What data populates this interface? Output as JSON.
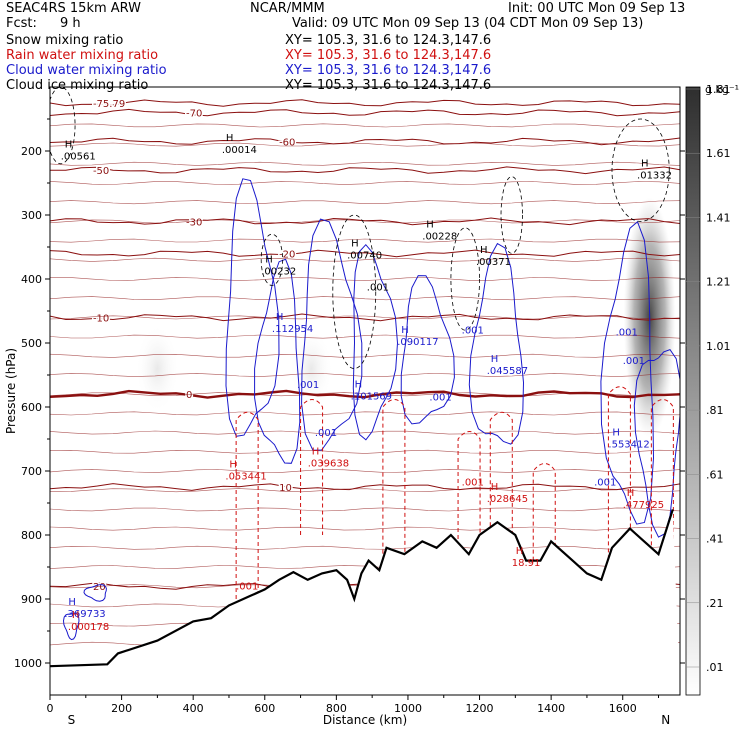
{
  "header": {
    "model": "SEAC4RS 15km ARW",
    "center": "NCAR/MMM",
    "init": "Init: 00 UTC Mon 09 Sep 13",
    "fcst_label": "Fcst:",
    "fcst_value": "9 h",
    "valid": "Valid: 09 UTC Mon 09 Sep 13 (04 CDT Mon 09 Sep 13)",
    "fields": [
      {
        "name": "Snow mixing ratio",
        "xy": "XY= 105.3, 31.6 to 124.3,147.6",
        "color": "#000000"
      },
      {
        "name": "Rain water mixing ratio",
        "xy": "XY= 105.3, 31.6 to 124.3,147.6",
        "color": "#d01010"
      },
      {
        "name": "Cloud water mixing ratio",
        "xy": "XY= 105.3, 31.6 to 124.3,147.6",
        "color": "#1a1acc"
      },
      {
        "name": "Cloud ice mixing ratio",
        "xy": "XY= 105.3, 31.6 to 124.3,147.6",
        "color": "#000000"
      }
    ]
  },
  "chart_data": {
    "type": "cross-section contour",
    "xlabel": "Distance (km)",
    "ylabel": "Pressure (hPa)",
    "xlim": [
      0,
      1760
    ],
    "ylim": [
      1050,
      100
    ],
    "x_ticks": [
      0,
      200,
      400,
      600,
      800,
      1000,
      1200,
      1400,
      1600
    ],
    "y_ticks": [
      200,
      300,
      400,
      500,
      600,
      700,
      800,
      900,
      1000
    ],
    "endpoint_labels": {
      "left": "S",
      "right": "N"
    },
    "colorbar": {
      "unit": "g kg⁻¹",
      "labels": [
        ".01",
        ".21",
        ".41",
        ".61",
        ".81",
        "1.01",
        "1.21",
        "1.41",
        "1.61",
        "1.81"
      ],
      "min": 0.01,
      "max": 1.81
    },
    "terrain": [
      [
        0,
        1005
      ],
      [
        160,
        1002
      ],
      [
        190,
        985
      ],
      [
        300,
        965
      ],
      [
        400,
        935
      ],
      [
        450,
        930
      ],
      [
        500,
        910
      ],
      [
        540,
        900
      ],
      [
        560,
        895
      ],
      [
        600,
        885
      ],
      [
        640,
        870
      ],
      [
        680,
        858
      ],
      [
        720,
        870
      ],
      [
        760,
        860
      ],
      [
        800,
        855
      ],
      [
        830,
        870
      ],
      [
        850,
        900
      ],
      [
        870,
        860
      ],
      [
        890,
        840
      ],
      [
        920,
        855
      ],
      [
        940,
        820
      ],
      [
        990,
        830
      ],
      [
        1040,
        810
      ],
      [
        1080,
        820
      ],
      [
        1120,
        800
      ],
      [
        1170,
        830
      ],
      [
        1200,
        800
      ],
      [
        1250,
        780
      ],
      [
        1300,
        800
      ],
      [
        1330,
        840
      ],
      [
        1370,
        840
      ],
      [
        1400,
        810
      ],
      [
        1460,
        840
      ],
      [
        1500,
        860
      ],
      [
        1540,
        870
      ],
      [
        1570,
        820
      ],
      [
        1620,
        790
      ],
      [
        1660,
        810
      ],
      [
        1700,
        830
      ],
      [
        1740,
        760
      ]
    ],
    "temperature_contours": [
      {
        "label": "-75.79",
        "p": 125
      },
      {
        "label": "-70",
        "p": 140
      },
      {
        "label": "-60",
        "p": 185
      },
      {
        "label": "-50",
        "p": 230
      },
      {
        "label": "-30",
        "p": 310
      },
      {
        "label": "-20",
        "p": 360
      },
      {
        "label": "-10",
        "p": 460
      },
      {
        "label": "0",
        "p": 580
      },
      {
        "label": "10",
        "p": 725
      },
      {
        "label": "20",
        "p": 880
      }
    ],
    "max_labels": [
      {
        "text": ".00561",
        "x": 30,
        "p": 210,
        "color": "#000000"
      },
      {
        "text": ".00014",
        "x": 480,
        "p": 200,
        "color": "#000000"
      },
      {
        "text": ".01332",
        "x": 1640,
        "p": 240,
        "color": "#000000"
      },
      {
        "text": ".00228",
        "x": 1040,
        "p": 335,
        "color": "#000000"
      },
      {
        "text": ".00740",
        "x": 830,
        "p": 365,
        "color": "#000000"
      },
      {
        "text": ".00371",
        "x": 1190,
        "p": 375,
        "color": "#000000"
      },
      {
        "text": ".00232",
        "x": 590,
        "p": 390,
        "color": "#000000"
      },
      {
        "text": ".112954",
        "x": 620,
        "p": 480,
        "color": "#1a1acc"
      },
      {
        "text": ".090117",
        "x": 970,
        "p": 500,
        "color": "#1a1acc"
      },
      {
        "text": ".045587",
        "x": 1220,
        "p": 545,
        "color": "#1a1acc"
      },
      {
        "text": ".101569",
        "x": 840,
        "p": 585,
        "color": "#1a1acc"
      },
      {
        "text": ".553412",
        "x": 1560,
        "p": 660,
        "color": "#1a1acc"
      },
      {
        "text": ".053441",
        "x": 490,
        "p": 710,
        "color": "#d01010"
      },
      {
        "text": ".039638",
        "x": 720,
        "p": 690,
        "color": "#d01010"
      },
      {
        "text": ".028645",
        "x": 1220,
        "p": 745,
        "color": "#d01010"
      },
      {
        "text": ".477925",
        "x": 1600,
        "p": 755,
        "color": "#d01010"
      },
      {
        "text": "18.91",
        "x": 1290,
        "p": 845,
        "color": "#d01010"
      },
      {
        "text": ".369733",
        "x": 40,
        "p": 925,
        "color": "#1a1acc"
      },
      {
        "text": ".000178",
        "x": 50,
        "p": 945,
        "color": "#d01010"
      }
    ],
    "min_labels": [
      {
        "text": ".001",
        "x": 885,
        "p": 418,
        "color": "#000000"
      },
      {
        "text": ".001",
        "x": 1150,
        "p": 485,
        "color": "#1a1acc"
      },
      {
        "text": ".001",
        "x": 1580,
        "p": 488,
        "color": "#1a1acc"
      },
      {
        "text": ".001",
        "x": 1600,
        "p": 533,
        "color": "#1a1acc"
      },
      {
        "text": ".001",
        "x": 690,
        "p": 570,
        "color": "#1a1acc"
      },
      {
        "text": ".001",
        "x": 1060,
        "p": 590,
        "color": "#1a1acc"
      },
      {
        "text": ".001",
        "x": 740,
        "p": 645,
        "color": "#1a1acc"
      },
      {
        "text": ".001",
        "x": 1150,
        "p": 723,
        "color": "#d01010"
      },
      {
        "text": ".001",
        "x": 1520,
        "p": 723,
        "color": "#1a1acc"
      },
      {
        "text": ".001",
        "x": 520,
        "p": 885,
        "color": "#d01010"
      }
    ]
  }
}
